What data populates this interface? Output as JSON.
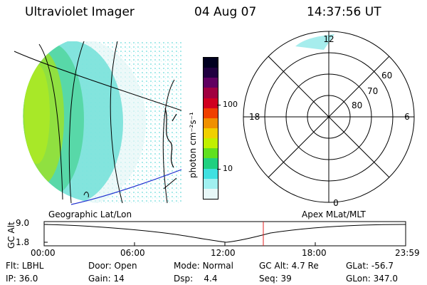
{
  "header": {
    "instrument": "Ultraviolet Imager",
    "date": "04 Aug 07",
    "time": "14:37:56 UT"
  },
  "colorbar": {
    "unit_label": "photon cm⁻²s⁻¹",
    "ticks": [
      "100",
      "10"
    ],
    "colors": [
      "#000020",
      "#200040",
      "#600060",
      "#a00040",
      "#d00020",
      "#f04000",
      "#f09000",
      "#f0d000",
      "#c0f000",
      "#60e020",
      "#20d080",
      "#40e0e0",
      "#a0f0f0",
      "#e8f8f8"
    ]
  },
  "polar_plot": {
    "mlt_labels": {
      "top": "12",
      "left": "18",
      "right": "6",
      "bottom": "0"
    },
    "lat_labels": [
      "60",
      "70",
      "80"
    ]
  },
  "timeline": {
    "left_label": "Geographic Lat/Lon",
    "right_label": "Apex MLat/MLT",
    "axis_title": "GC Alt",
    "y_max": "9.0",
    "y_min": "1.8",
    "time_ticks": [
      "00:00",
      "06:00",
      "12:00",
      "18:00",
      "23:59"
    ]
  },
  "status": {
    "flt_label": "Flt:",
    "flt_value": "LBHL",
    "ip_label": "IP:",
    "ip_value": "36.0",
    "door_label": "Door:",
    "door_value": "Open",
    "gain_label": "Gain:",
    "gain_value": "14",
    "mode_label": "Mode:",
    "mode_value": "Normal",
    "dsp_label": "Dsp:",
    "dsp_value": "4.4",
    "gcalt_label": "GC Alt:",
    "gcalt_value": "4.7 Re",
    "seq_label": "Seq:",
    "seq_value": "39",
    "glat_label": "GLat:",
    "glat_value": "-56.7",
    "glon_label": "GLon:",
    "glon_value": "347.0"
  }
}
